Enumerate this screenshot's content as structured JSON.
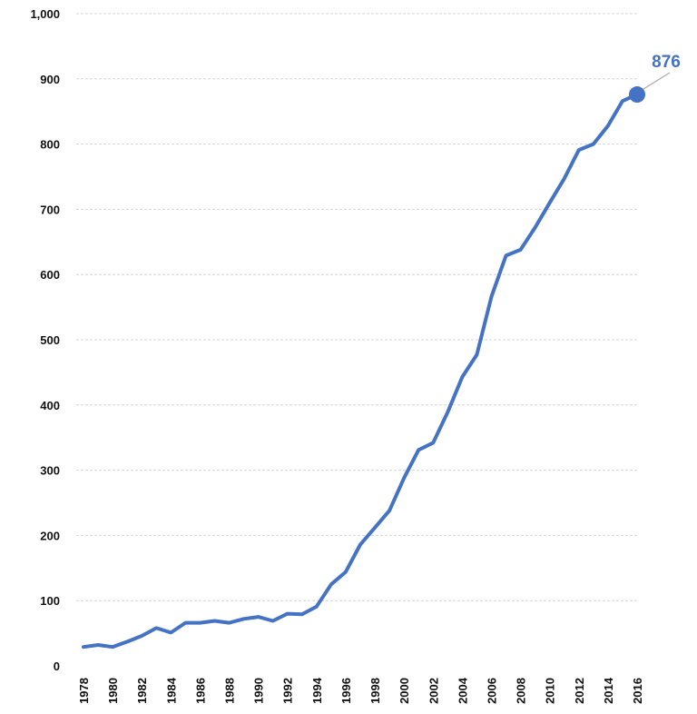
{
  "chart_data": {
    "type": "line",
    "title": "",
    "xlabel": "",
    "ylabel": "",
    "ylim": [
      0,
      1000
    ],
    "y_ticks": [
      0,
      100,
      200,
      300,
      400,
      500,
      600,
      700,
      800,
      900,
      1000
    ],
    "y_tick_labels": [
      "0",
      "100",
      "200",
      "300",
      "400",
      "500",
      "600",
      "700",
      "800",
      "900",
      "1,000"
    ],
    "x_tick_labels": [
      "1978",
      "1980",
      "1982",
      "1984",
      "1986",
      "1988",
      "1990",
      "1992",
      "1994",
      "1996",
      "1998",
      "2000",
      "2002",
      "2004",
      "2006",
      "2008",
      "2010",
      "2012",
      "2014",
      "2016"
    ],
    "grid": true,
    "legend": "none",
    "color": "#4472c4",
    "x": [
      1978,
      1979,
      1980,
      1981,
      1982,
      1983,
      1984,
      1985,
      1986,
      1987,
      1988,
      1989,
      1990,
      1991,
      1992,
      1993,
      1994,
      1995,
      1996,
      1997,
      1998,
      1999,
      2000,
      2001,
      2002,
      2003,
      2004,
      2005,
      2006,
      2007,
      2008,
      2009,
      2010,
      2011,
      2012,
      2013,
      2014,
      2015,
      2016
    ],
    "values": [
      29,
      32,
      29,
      37,
      46,
      58,
      51,
      66,
      66,
      69,
      66,
      72,
      75,
      69,
      80,
      79,
      91,
      125,
      144,
      186,
      212,
      238,
      288,
      331,
      342,
      389,
      443,
      477,
      566,
      629,
      638,
      672,
      710,
      747,
      791,
      800,
      828,
      866,
      876
    ],
    "annotation": {
      "x": 2016,
      "value": 876,
      "label": "876"
    }
  }
}
